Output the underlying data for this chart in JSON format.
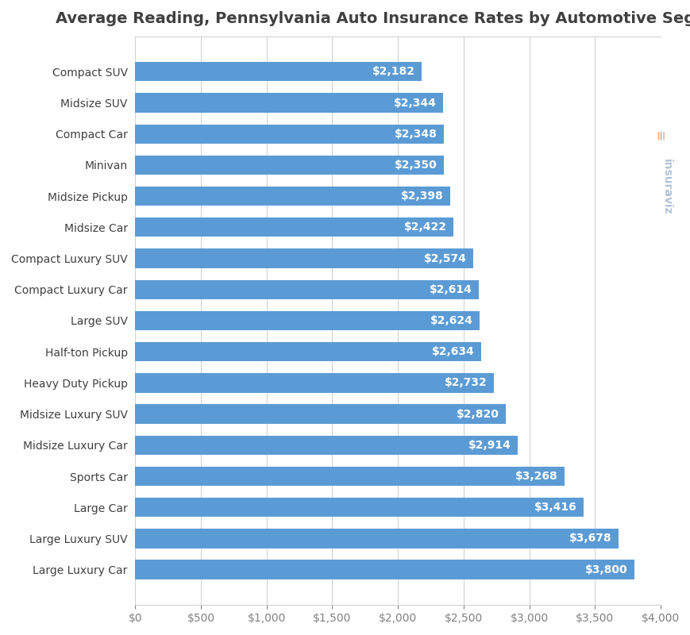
{
  "title": "Average Reading, Pennsylvania Auto Insurance Rates by Automotive Segment",
  "categories": [
    "Compact SUV",
    "Midsize SUV",
    "Compact Car",
    "Minivan",
    "Midsize Pickup",
    "Midsize Car",
    "Compact Luxury SUV",
    "Compact Luxury Car",
    "Large SUV",
    "Half-ton Pickup",
    "Heavy Duty Pickup",
    "Midsize Luxury SUV",
    "Midsize Luxury Car",
    "Sports Car",
    "Large Car",
    "Large Luxury SUV",
    "Large Luxury Car"
  ],
  "values": [
    2182,
    2344,
    2348,
    2350,
    2398,
    2422,
    2574,
    2614,
    2624,
    2634,
    2732,
    2820,
    2914,
    3268,
    3416,
    3678,
    3800
  ],
  "bar_color": "#5b9bd5",
  "label_color": "#ffffff",
  "background_color": "#ffffff",
  "grid_color": "#d3d3d3",
  "title_color": "#404040",
  "axis_label_color": "#808080",
  "xlim": [
    0,
    4000
  ],
  "xticks": [
    0,
    500,
    1000,
    1500,
    2000,
    2500,
    3000,
    3500,
    4000
  ],
  "title_fontsize": 14,
  "label_fontsize": 10,
  "tick_fontsize": 10,
  "bar_label_fontsize": 10,
  "watermark_text": "insuraviz",
  "watermark_color": "#a8bcd4"
}
